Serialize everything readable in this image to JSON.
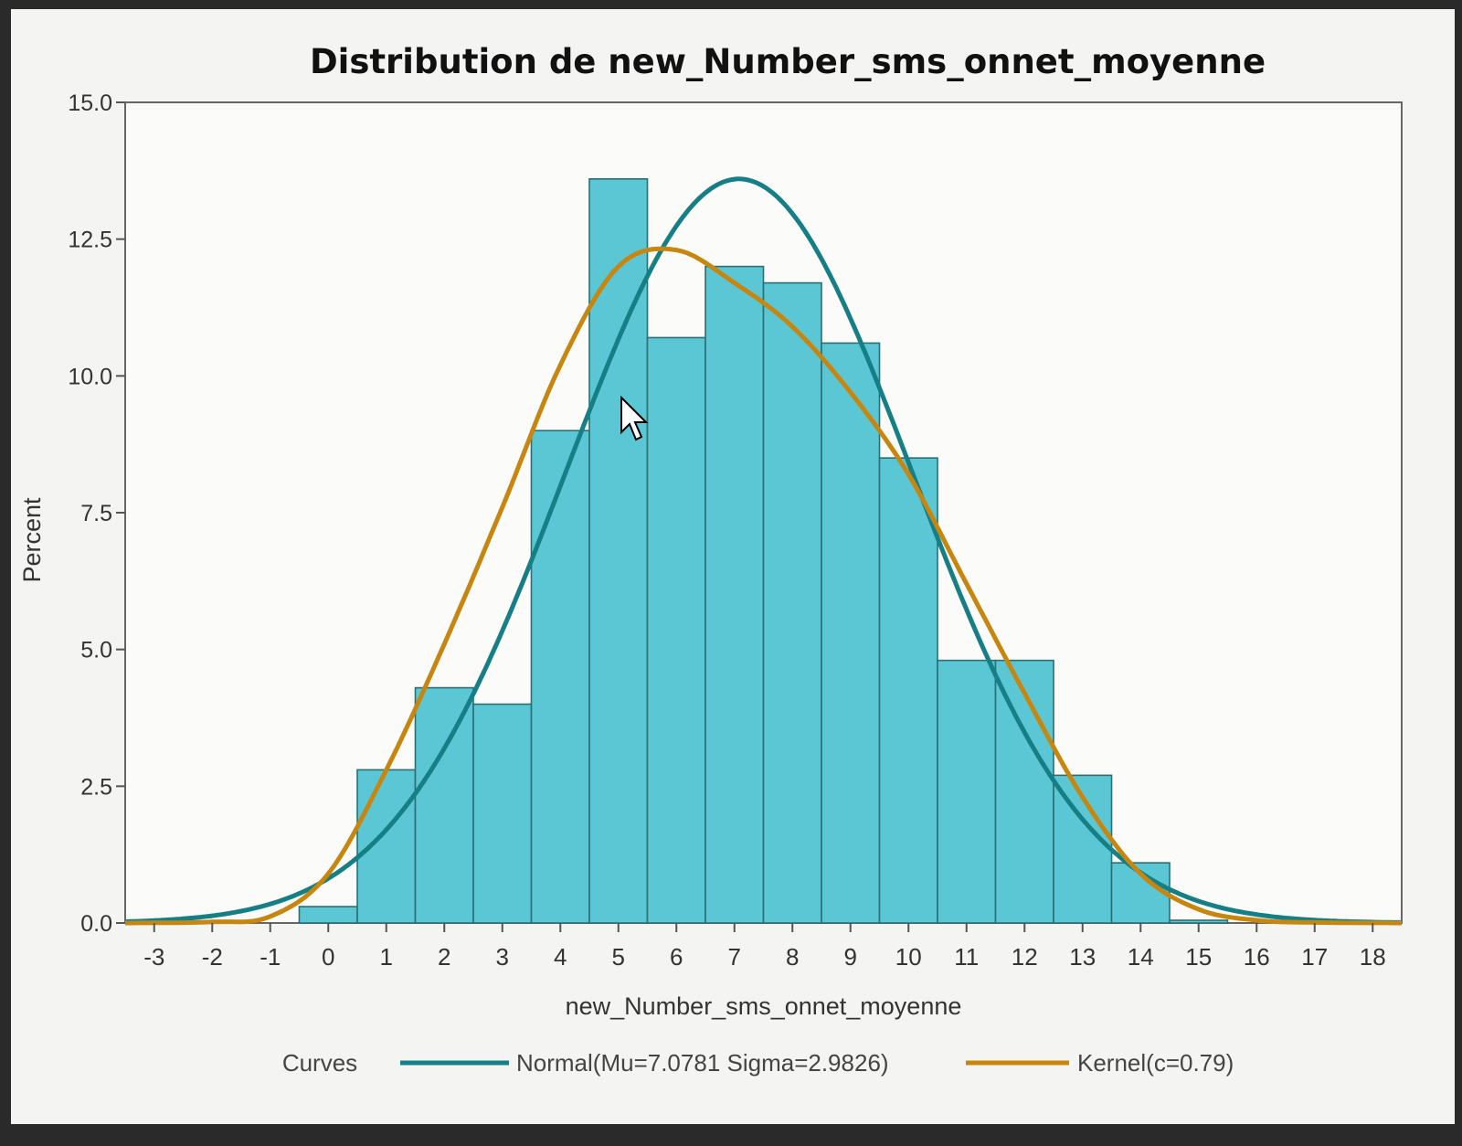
{
  "chart_data": {
    "type": "histogram",
    "title": "Distribution de new_Number_sms_onnet_moyenne",
    "xlabel": "new_Number_sms_onnet_moyenne",
    "ylabel": "Percent",
    "xlim": [
      -3.5,
      18.5
    ],
    "ylim": [
      0,
      15
    ],
    "x_ticks": [
      "-3",
      "-2",
      "-1",
      "0",
      "1",
      "2",
      "3",
      "4",
      "5",
      "6",
      "7",
      "8",
      "9",
      "10",
      "11",
      "12",
      "13",
      "14",
      "15",
      "16",
      "17",
      "18"
    ],
    "y_ticks": [
      "0.0",
      "2.5",
      "5.0",
      "7.5",
      "10.0",
      "12.5",
      "15.0"
    ],
    "bins": [
      {
        "center": 0,
        "percent": 0.3
      },
      {
        "center": 1,
        "percent": 2.8
      },
      {
        "center": 2,
        "percent": 4.3
      },
      {
        "center": 3,
        "percent": 4.0
      },
      {
        "center": 4,
        "percent": 9.0
      },
      {
        "center": 5,
        "percent": 13.6
      },
      {
        "center": 6,
        "percent": 10.7
      },
      {
        "center": 7,
        "percent": 12.0
      },
      {
        "center": 8,
        "percent": 11.7
      },
      {
        "center": 9,
        "percent": 10.6
      },
      {
        "center": 10,
        "percent": 8.5
      },
      {
        "center": 11,
        "percent": 4.8
      },
      {
        "center": 12,
        "percent": 4.8
      },
      {
        "center": 13,
        "percent": 2.7
      },
      {
        "center": 14,
        "percent": 1.1
      },
      {
        "center": 15,
        "percent": 0.05
      }
    ],
    "bar_color": "#5cc7d4",
    "curves": [
      {
        "name": "Normal(Mu=7.0781 Sigma=2.9826)",
        "type": "normal",
        "mu": 7.0781,
        "sigma": 2.9826,
        "peak": 13.6,
        "color": "#167f86"
      },
      {
        "name": "Kernel(c=0.79)",
        "type": "kernel",
        "points": [
          [
            -3.5,
            0
          ],
          [
            -2,
            0.02
          ],
          [
            -1,
            0.12
          ],
          [
            0,
            0.9
          ],
          [
            1,
            2.8
          ],
          [
            2,
            5.1
          ],
          [
            3,
            7.6
          ],
          [
            4,
            10.2
          ],
          [
            5,
            12.0
          ],
          [
            6,
            12.3
          ],
          [
            7,
            11.7
          ],
          [
            8,
            10.9
          ],
          [
            9,
            9.7
          ],
          [
            10,
            8.2
          ],
          [
            11,
            6.2
          ],
          [
            12,
            4.2
          ],
          [
            13,
            2.3
          ],
          [
            14,
            0.9
          ],
          [
            15,
            0.25
          ],
          [
            16,
            0.05
          ],
          [
            17,
            0.01
          ],
          [
            18.5,
            0
          ]
        ],
        "color": "#c6860f"
      }
    ],
    "legend": {
      "title": "Curves",
      "position": "bottom"
    }
  }
}
